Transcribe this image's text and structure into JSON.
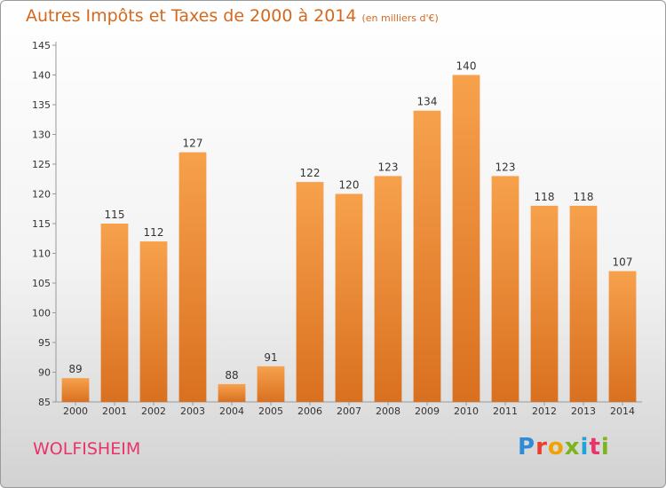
{
  "title": "Autres Impôts et Taxes de 2000 à 2014",
  "subtitle": "(en milliers d'€)",
  "commune": "WOLFISHEIM",
  "logo": {
    "text": "Proxiti",
    "colors": [
      "#2e8bd8",
      "#e83e2e",
      "#f2a200",
      "#7ab51d",
      "#1fa3d8",
      "#e8336b",
      "#7ab51d"
    ]
  },
  "colors": {
    "bar_top": "#f7a14d",
    "bar_bottom": "#d9701f",
    "title": "#d2691e",
    "commune": "#e8336b"
  },
  "chart_data": {
    "type": "bar",
    "title": "Autres Impôts et Taxes de 2000 à 2014",
    "categories": [
      "2000",
      "2001",
      "2002",
      "2003",
      "2004",
      "2005",
      "2006",
      "2007",
      "2008",
      "2009",
      "2010",
      "2011",
      "2012",
      "2013",
      "2014"
    ],
    "values": [
      89,
      115,
      112,
      127,
      88,
      91,
      122,
      120,
      123,
      134,
      140,
      123,
      118,
      118,
      107
    ],
    "ylim": [
      85,
      145
    ],
    "yticks": [
      85,
      90,
      95,
      100,
      105,
      110,
      115,
      120,
      125,
      130,
      135,
      140,
      145
    ],
    "grid": false,
    "xlabel": "",
    "ylabel": ""
  }
}
